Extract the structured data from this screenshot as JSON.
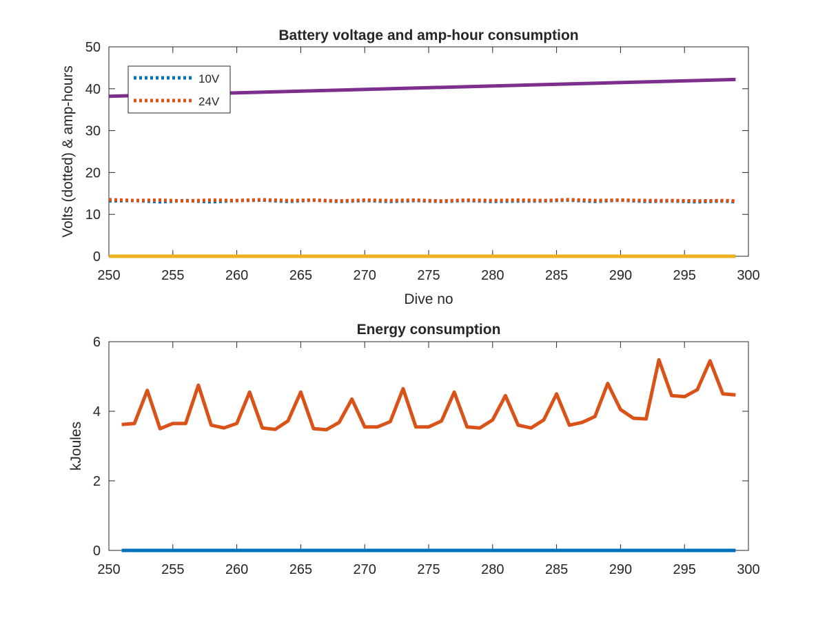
{
  "chart_data": [
    {
      "type": "line",
      "title": "Battery voltage and amp-hour consumption",
      "xlabel": "Dive no",
      "ylabel": "Volts (dotted) & amp-hours",
      "xlim": [
        250,
        300
      ],
      "ylim": [
        0,
        50
      ],
      "xticks": [
        "250",
        "255",
        "260",
        "265",
        "270",
        "275",
        "280",
        "285",
        "290",
        "295",
        "300"
      ],
      "yticks": [
        "0",
        "10",
        "20",
        "30",
        "40",
        "50"
      ],
      "grid": false,
      "legend": {
        "placement": "top-left",
        "entries": [
          "10V",
          "24V"
        ]
      },
      "series": [
        {
          "name": "10V",
          "color": "#0072BD",
          "style": "dotted",
          "x": [
            250,
            252,
            254,
            256,
            258,
            260,
            262,
            264,
            266,
            268,
            270,
            272,
            274,
            276,
            278,
            280,
            282,
            284,
            286,
            288,
            290,
            292,
            294,
            296,
            298,
            299
          ],
          "y": [
            13.2,
            13.3,
            13.0,
            13.3,
            13.0,
            13.3,
            13.4,
            13.1,
            13.4,
            13.1,
            13.3,
            13.1,
            13.3,
            13.1,
            13.3,
            13.1,
            13.2,
            13.2,
            13.4,
            13.1,
            13.4,
            13.1,
            13.2,
            13.0,
            13.2,
            13.0
          ]
        },
        {
          "name": "24V",
          "color": "#D95319",
          "style": "dotted",
          "x": [
            250,
            252,
            254,
            256,
            258,
            260,
            262,
            264,
            266,
            268,
            270,
            272,
            274,
            276,
            278,
            280,
            282,
            284,
            286,
            288,
            290,
            292,
            294,
            296,
            298,
            299
          ],
          "y": [
            13.5,
            13.3,
            13.4,
            13.2,
            13.4,
            13.3,
            13.5,
            13.3,
            13.4,
            13.2,
            13.4,
            13.3,
            13.4,
            13.2,
            13.4,
            13.3,
            13.4,
            13.3,
            13.5,
            13.3,
            13.4,
            13.3,
            13.3,
            13.2,
            13.3,
            13.2
          ]
        },
        {
          "color": "#7E2F8E",
          "style": "solid",
          "x": [
            250,
            299
          ],
          "y": [
            38.2,
            42.2
          ]
        },
        {
          "color": "#EDB120",
          "style": "solid",
          "x": [
            250,
            299
          ],
          "y": [
            0,
            0
          ]
        }
      ]
    },
    {
      "type": "line",
      "title": "Energy consumption",
      "xlabel": "",
      "ylabel": "kJoules",
      "xlim": [
        250,
        300
      ],
      "ylim": [
        0,
        6
      ],
      "xticks": [
        "250",
        "255",
        "260",
        "265",
        "270",
        "275",
        "280",
        "285",
        "290",
        "295",
        "300"
      ],
      "yticks": [
        "0",
        "2",
        "4",
        "6"
      ],
      "grid": false,
      "series": [
        {
          "color": "#0072BD",
          "style": "solid",
          "x": [
            251,
            299
          ],
          "y": [
            0,
            0
          ]
        },
        {
          "color": "#D95319",
          "style": "solid",
          "x": [
            251,
            252,
            253,
            254,
            255,
            256,
            257,
            258,
            259,
            260,
            261,
            262,
            263,
            264,
            265,
            266,
            267,
            268,
            269,
            270,
            271,
            272,
            273,
            274,
            275,
            276,
            277,
            278,
            279,
            280,
            281,
            282,
            283,
            284,
            285,
            286,
            287,
            288,
            289,
            290,
            291,
            292,
            293,
            294,
            295,
            296,
            297,
            298,
            299
          ],
          "y": [
            3.62,
            3.65,
            4.6,
            3.5,
            3.65,
            3.65,
            4.75,
            3.6,
            3.52,
            3.65,
            4.55,
            3.52,
            3.48,
            3.72,
            4.55,
            3.5,
            3.47,
            3.68,
            4.35,
            3.55,
            3.55,
            3.7,
            4.65,
            3.55,
            3.55,
            3.72,
            4.55,
            3.55,
            3.52,
            3.75,
            4.45,
            3.6,
            3.52,
            3.75,
            4.5,
            3.6,
            3.68,
            3.85,
            4.8,
            4.05,
            3.8,
            3.78,
            5.48,
            4.45,
            4.42,
            4.62,
            5.45,
            4.5,
            4.47
          ]
        }
      ]
    }
  ]
}
